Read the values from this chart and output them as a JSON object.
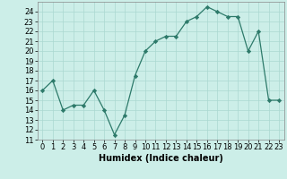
{
  "x": [
    0,
    1,
    2,
    3,
    4,
    5,
    6,
    7,
    8,
    9,
    10,
    11,
    12,
    13,
    14,
    15,
    16,
    17,
    18,
    19,
    20,
    21,
    22,
    23
  ],
  "y": [
    16,
    17,
    14,
    14.5,
    14.5,
    16,
    14,
    11.5,
    13.5,
    17.5,
    20,
    21,
    21.5,
    21.5,
    23,
    23.5,
    24.5,
    24,
    23.5,
    23.5,
    20,
    22,
    15,
    15
  ],
  "xlabel": "Humidex (Indice chaleur)",
  "ylim": [
    11,
    25
  ],
  "xlim": [
    -0.5,
    23.5
  ],
  "yticks": [
    11,
    12,
    13,
    14,
    15,
    16,
    17,
    18,
    19,
    20,
    21,
    22,
    23,
    24
  ],
  "xticks": [
    0,
    1,
    2,
    3,
    4,
    5,
    6,
    7,
    8,
    9,
    10,
    11,
    12,
    13,
    14,
    15,
    16,
    17,
    18,
    19,
    20,
    21,
    22,
    23
  ],
  "line_color": "#2d7a6a",
  "marker_color": "#2d7a6a",
  "bg_color": "#cceee8",
  "grid_color": "#aad8d0",
  "tick_fontsize": 6,
  "xlabel_fontsize": 7,
  "linewidth": 0.9,
  "markersize": 2.2
}
